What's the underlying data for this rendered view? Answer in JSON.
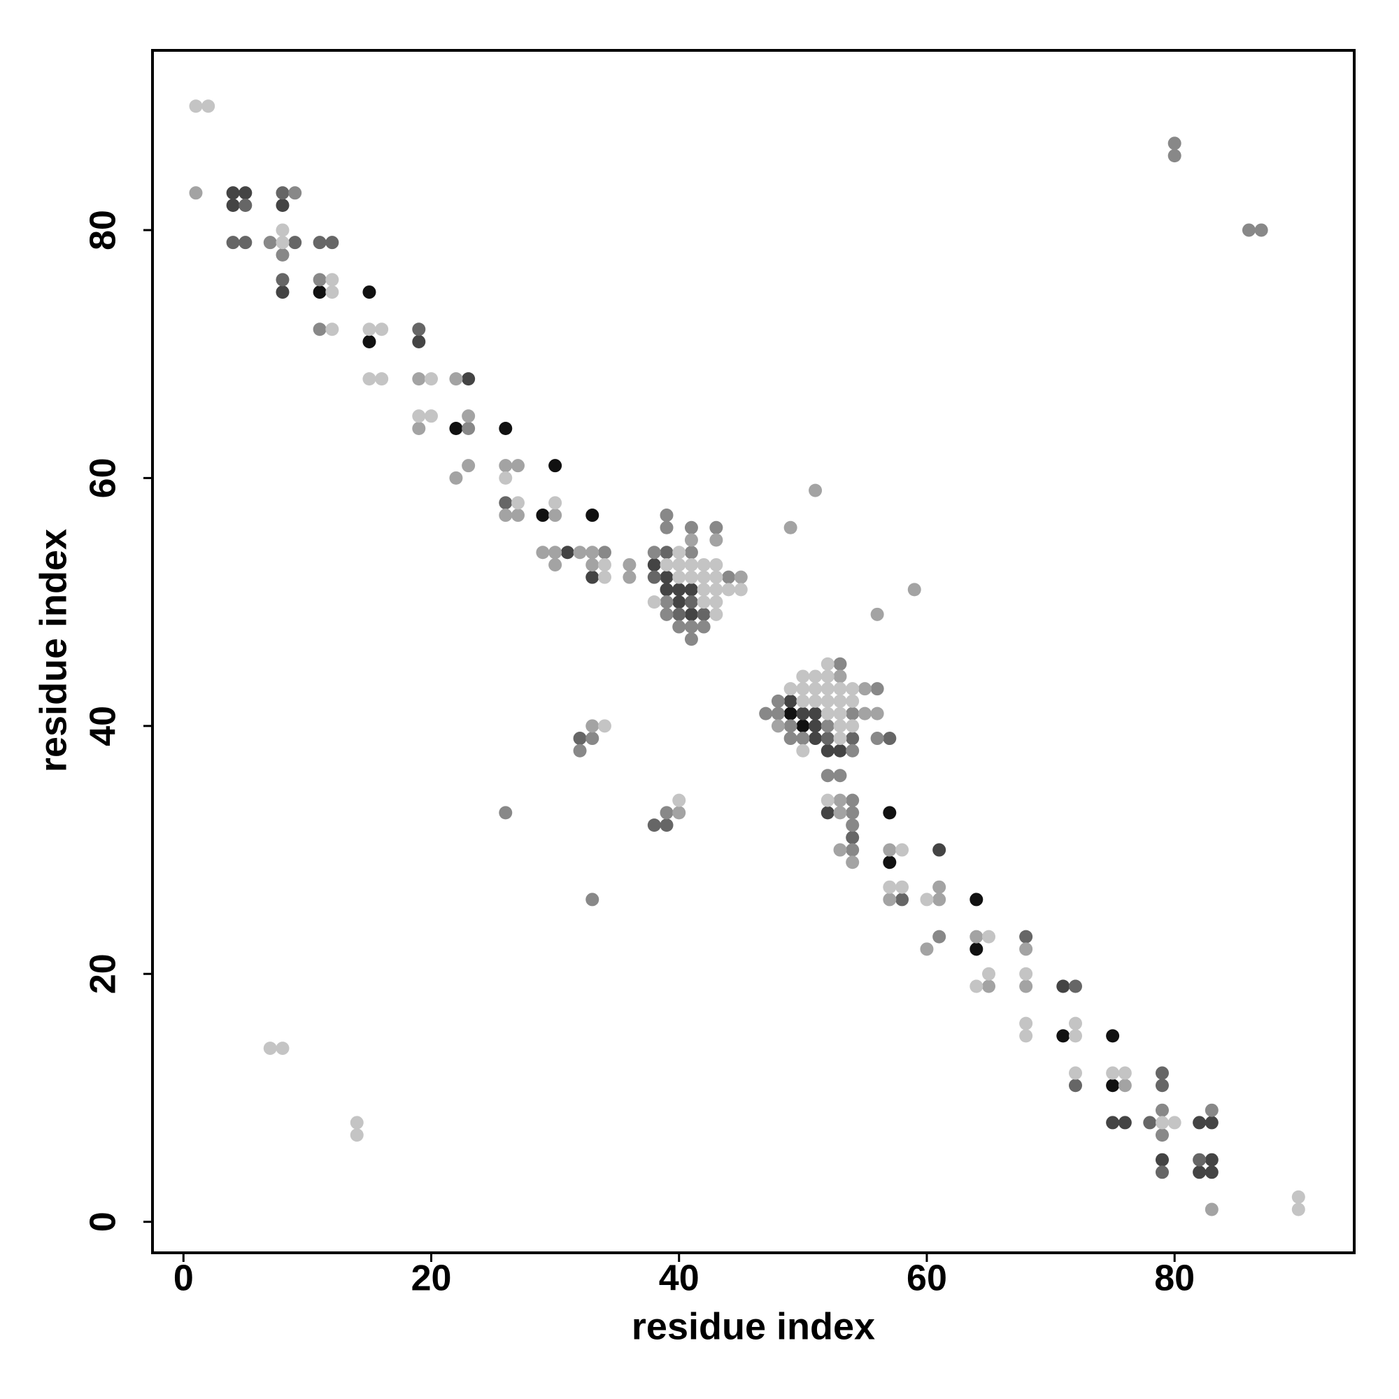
{
  "chart_data": {
    "type": "scatter",
    "xlabel": "residue index",
    "ylabel": "residue index",
    "xlim": [
      -2.5,
      94.5
    ],
    "ylim": [
      -2.5,
      94.5
    ],
    "xticks": [
      0,
      20,
      40,
      60,
      80
    ],
    "yticks": [
      0,
      20,
      40,
      60,
      80
    ],
    "series": [
      {
        "color": "#111111",
        "x": [
          11,
          15,
          15,
          22,
          26,
          30,
          29,
          33,
          49,
          50,
          57,
          57,
          64,
          64,
          71,
          75,
          75
        ],
        "values": [
          75,
          75,
          71,
          64,
          64,
          61,
          57,
          57,
          41,
          40,
          33,
          29,
          26,
          22,
          15,
          15,
          11
        ]
      },
      {
        "color": "#444444",
        "x": [
          4,
          5,
          4,
          8,
          8,
          19,
          23,
          31,
          33,
          38,
          39,
          39,
          40,
          41,
          40,
          41,
          49,
          50,
          51,
          51,
          51,
          52,
          53,
          52,
          61,
          71,
          75,
          76,
          82,
          83,
          79,
          83,
          82,
          83
        ],
        "values": [
          83,
          83,
          82,
          82,
          75,
          71,
          68,
          54,
          52,
          53,
          52,
          51,
          51,
          51,
          50,
          49,
          42,
          41,
          41,
          40,
          39,
          38,
          38,
          33,
          30,
          19,
          8,
          8,
          8,
          8,
          5,
          5,
          4,
          4
        ]
      },
      {
        "color": "#666666",
        "x": [
          5,
          4,
          5,
          9,
          11,
          12,
          8,
          8,
          19,
          26,
          38,
          39,
          40,
          41,
          42,
          52,
          54,
          57,
          54,
          58,
          68,
          72,
          72,
          79,
          79,
          78,
          79,
          82,
          32,
          38,
          39
        ],
        "values": [
          82,
          79,
          79,
          79,
          79,
          79,
          83,
          76,
          72,
          58,
          52,
          54,
          49,
          50,
          49,
          39,
          39,
          39,
          31,
          26,
          23,
          19,
          11,
          12,
          11,
          8,
          4,
          5,
          39,
          32,
          32
        ]
      },
      {
        "color": "#888888",
        "x": [
          9,
          7,
          8,
          11,
          11,
          23,
          34,
          39,
          39,
          41,
          43,
          38,
          41,
          44,
          39,
          39,
          40,
          41,
          42,
          41,
          53,
          56,
          48,
          47,
          48,
          54,
          49,
          52,
          49,
          50,
          56,
          54,
          52,
          53,
          54,
          54,
          54,
          54,
          61,
          79,
          79,
          83,
          80,
          80,
          86,
          87,
          33,
          32,
          39,
          26,
          33
        ],
        "values": [
          83,
          79,
          78,
          76,
          72,
          64,
          54,
          57,
          56,
          56,
          56,
          54,
          54,
          52,
          50,
          49,
          48,
          48,
          48,
          47,
          45,
          43,
          42,
          41,
          41,
          41,
          40,
          40,
          39,
          39,
          39,
          38,
          36,
          36,
          34,
          33,
          32,
          30,
          23,
          9,
          7,
          9,
          87,
          86,
          80,
          80,
          39,
          38,
          33,
          33,
          26
        ]
      },
      {
        "color": "#a3a3a3",
        "x": [
          1,
          19,
          22,
          19,
          23,
          22,
          23,
          26,
          27,
          26,
          27,
          30,
          29,
          30,
          30,
          32,
          33,
          33,
          36,
          36,
          41,
          43,
          45,
          53,
          55,
          48,
          55,
          56,
          53,
          53,
          53,
          54,
          57,
          57,
          61,
          61,
          60,
          64,
          65,
          68,
          68,
          76,
          83,
          49,
          51,
          59,
          56,
          33,
          40
        ],
        "values": [
          83,
          68,
          68,
          64,
          65,
          60,
          61,
          61,
          61,
          57,
          57,
          57,
          54,
          54,
          53,
          54,
          54,
          53,
          53,
          52,
          55,
          55,
          52,
          44,
          43,
          40,
          41,
          41,
          34,
          33,
          30,
          29,
          30,
          26,
          27,
          26,
          22,
          23,
          19,
          22,
          19,
          11,
          1,
          56,
          59,
          51,
          49,
          40,
          33
        ]
      },
      {
        "color": "#c4c4c4",
        "x": [
          1,
          2,
          8,
          8,
          12,
          12,
          12,
          15,
          16,
          15,
          16,
          20,
          19,
          20,
          26,
          27,
          30,
          34,
          34,
          40,
          39,
          40,
          41,
          42,
          43,
          40,
          41,
          42,
          43,
          42,
          43,
          44,
          45,
          38,
          42,
          43,
          43,
          52,
          50,
          51,
          52,
          49,
          50,
          51,
          52,
          53,
          54,
          50,
          51,
          52,
          53,
          54,
          52,
          53,
          53,
          54,
          53,
          50,
          52,
          58,
          57,
          58,
          60,
          65,
          64,
          65,
          68,
          68,
          68,
          72,
          72,
          72,
          75,
          76,
          79,
          80,
          90,
          90,
          34,
          40,
          7,
          8,
          14,
          14
        ],
        "values": [
          90,
          90,
          80,
          79,
          76,
          75,
          72,
          72,
          72,
          68,
          68,
          68,
          65,
          65,
          60,
          58,
          58,
          53,
          52,
          54,
          53,
          53,
          53,
          53,
          53,
          52,
          52,
          52,
          52,
          51,
          51,
          51,
          51,
          50,
          50,
          50,
          49,
          45,
          44,
          44,
          44,
          43,
          43,
          43,
          43,
          43,
          43,
          42,
          42,
          42,
          42,
          42,
          41,
          41,
          40,
          40,
          39,
          38,
          34,
          30,
          27,
          27,
          26,
          23,
          19,
          20,
          20,
          16,
          15,
          16,
          15,
          12,
          12,
          12,
          8,
          8,
          2,
          1,
          40,
          34,
          14,
          14,
          8,
          7
        ]
      }
    ]
  }
}
